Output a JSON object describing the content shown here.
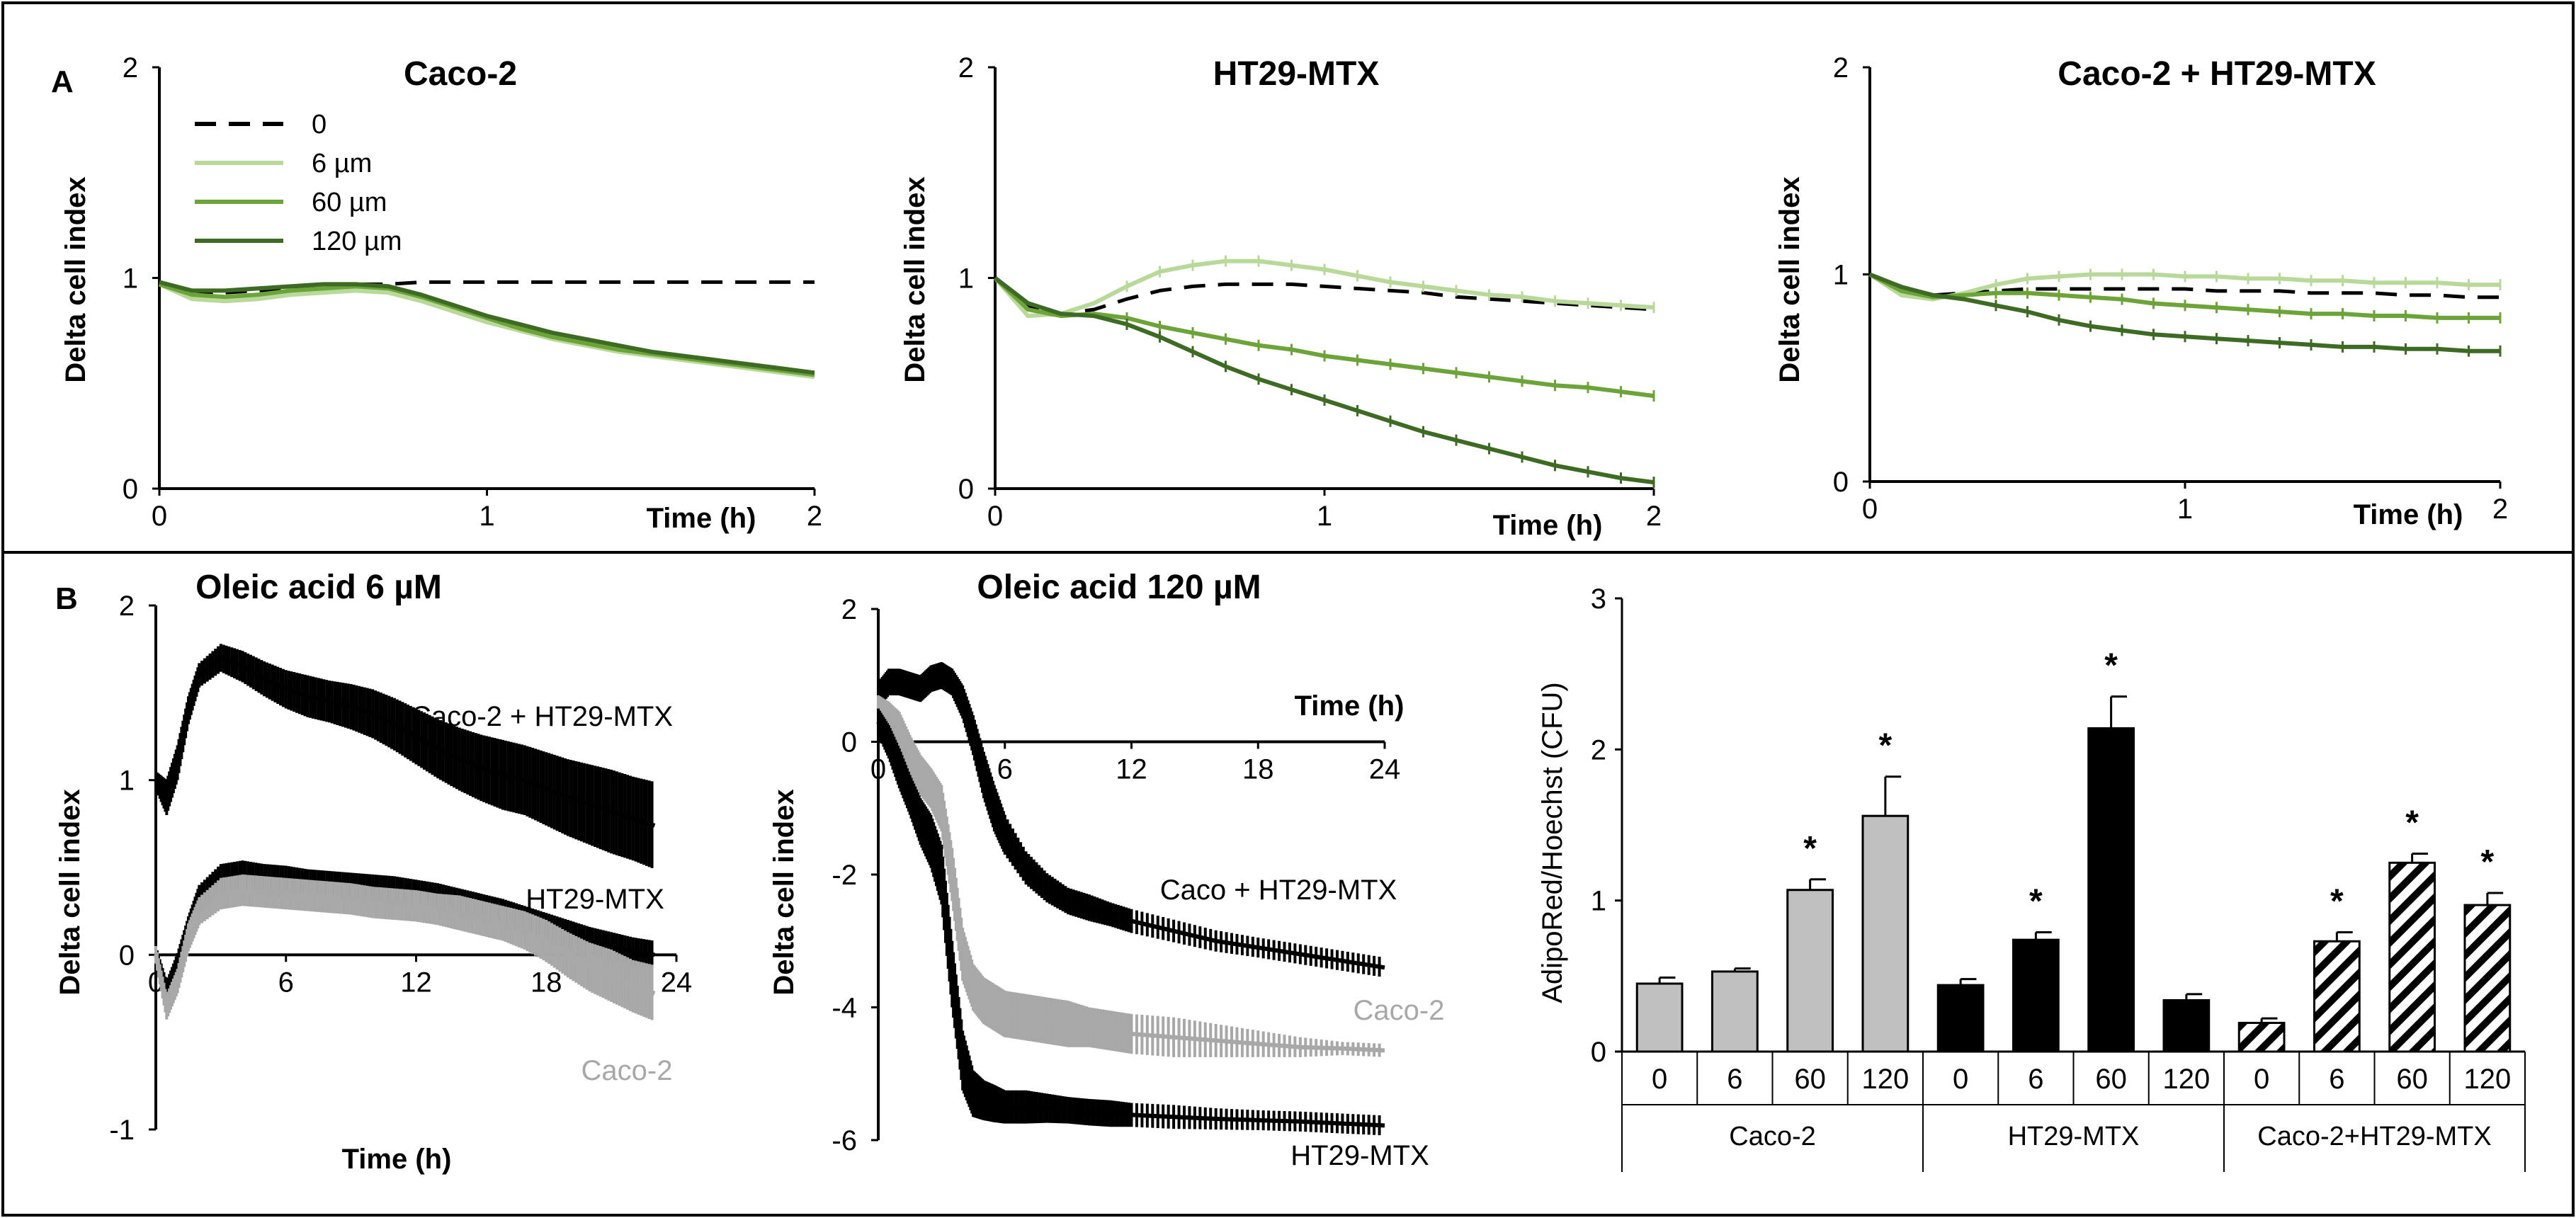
{
  "colors": {
    "zero": "#000000",
    "c6": "#b9d99a",
    "c60": "#6ca43a",
    "c120": "#3d6b24",
    "gray": "#a8a8a8",
    "black": "#000000"
  },
  "panels": {
    "a_label": "A",
    "b_label": "B"
  },
  "panelA": {
    "legend": {
      "items": [
        {
          "label": "0",
          "color": "#000000",
          "dashed": true
        },
        {
          "label": "6 µm",
          "color": "#b9d99a"
        },
        {
          "label": "60 µm",
          "color": "#6ca43a"
        },
        {
          "label": "120 µm",
          "color": "#3d6b24"
        }
      ]
    }
  },
  "chart_data": [
    {
      "type": "line",
      "id": "a1",
      "title": "Caco-2",
      "xlabel": "Time (h)",
      "ylabel": "Delta cell index",
      "xlim": [
        0,
        2
      ],
      "ylim": [
        0,
        2
      ],
      "xticks": [
        "0",
        "1",
        "2"
      ],
      "yticks": [
        "0",
        "1",
        "2"
      ],
      "x": [
        0,
        0.1,
        0.2,
        0.3,
        0.4,
        0.5,
        0.6,
        0.7,
        0.8,
        0.9,
        1.0,
        1.1,
        1.2,
        1.3,
        1.4,
        1.5,
        1.6,
        1.7,
        1.8,
        1.9,
        2.0
      ],
      "series": [
        {
          "name": "0",
          "color": "#000000",
          "dashed": true,
          "values": [
            0.97,
            0.92,
            0.93,
            0.94,
            0.95,
            0.96,
            0.97,
            0.97,
            0.98,
            0.98,
            0.98,
            0.98,
            0.98,
            0.98,
            0.98,
            0.98,
            0.98,
            0.98,
            0.98,
            0.98,
            0.98
          ]
        },
        {
          "name": "6 µm",
          "color": "#b9d99a",
          "values": [
            0.97,
            0.9,
            0.89,
            0.9,
            0.92,
            0.93,
            0.94,
            0.93,
            0.89,
            0.84,
            0.79,
            0.75,
            0.71,
            0.68,
            0.65,
            0.63,
            0.61,
            0.59,
            0.57,
            0.55,
            0.53
          ]
        },
        {
          "name": "60 µm",
          "color": "#6ca43a",
          "values": [
            0.97,
            0.92,
            0.91,
            0.92,
            0.94,
            0.95,
            0.96,
            0.95,
            0.91,
            0.86,
            0.81,
            0.76,
            0.72,
            0.69,
            0.66,
            0.64,
            0.62,
            0.6,
            0.58,
            0.56,
            0.54
          ]
        },
        {
          "name": "120 µm",
          "color": "#3d6b24",
          "values": [
            0.98,
            0.94,
            0.94,
            0.95,
            0.96,
            0.97,
            0.97,
            0.96,
            0.92,
            0.87,
            0.82,
            0.78,
            0.74,
            0.71,
            0.68,
            0.65,
            0.63,
            0.61,
            0.59,
            0.57,
            0.55
          ]
        }
      ]
    },
    {
      "type": "line",
      "id": "a2",
      "title": "HT29-MTX",
      "xlabel": "Time (h)",
      "ylabel": "Delta cell index",
      "xlim": [
        0,
        2
      ],
      "ylim": [
        0,
        2
      ],
      "xticks": [
        "0",
        "1",
        "2"
      ],
      "yticks": [
        "0",
        "1",
        "2"
      ],
      "x": [
        0,
        0.1,
        0.2,
        0.3,
        0.4,
        0.5,
        0.6,
        0.7,
        0.8,
        0.9,
        1.0,
        1.1,
        1.2,
        1.3,
        1.4,
        1.5,
        1.6,
        1.7,
        1.8,
        1.9,
        2.0
      ],
      "series": [
        {
          "name": "0",
          "color": "#000000",
          "dashed": true,
          "values": [
            1.0,
            0.86,
            0.83,
            0.85,
            0.9,
            0.94,
            0.96,
            0.97,
            0.97,
            0.97,
            0.96,
            0.95,
            0.94,
            0.93,
            0.91,
            0.9,
            0.89,
            0.88,
            0.87,
            0.86,
            0.85
          ]
        },
        {
          "name": "6 µm",
          "color": "#b9d99a",
          "values": [
            1.0,
            0.82,
            0.83,
            0.88,
            0.96,
            1.03,
            1.06,
            1.08,
            1.08,
            1.06,
            1.04,
            1.01,
            0.98,
            0.96,
            0.94,
            0.92,
            0.91,
            0.89,
            0.88,
            0.87,
            0.86
          ]
        },
        {
          "name": "60 µm",
          "color": "#6ca43a",
          "values": [
            1.0,
            0.85,
            0.82,
            0.83,
            0.81,
            0.77,
            0.74,
            0.71,
            0.68,
            0.66,
            0.63,
            0.61,
            0.59,
            0.57,
            0.55,
            0.53,
            0.51,
            0.49,
            0.48,
            0.46,
            0.44
          ]
        },
        {
          "name": "120 µm",
          "color": "#3d6b24",
          "values": [
            1.0,
            0.88,
            0.83,
            0.82,
            0.78,
            0.72,
            0.65,
            0.58,
            0.52,
            0.47,
            0.42,
            0.37,
            0.32,
            0.27,
            0.23,
            0.19,
            0.15,
            0.11,
            0.08,
            0.05,
            0.03
          ]
        }
      ]
    },
    {
      "type": "line",
      "id": "a3",
      "title": "Caco-2 + HT29-MTX",
      "xlabel": "Time (h)",
      "ylabel": "Delta cell index",
      "xlim": [
        0,
        2
      ],
      "ylim": [
        0,
        2
      ],
      "xticks": [
        "0",
        "1",
        "2"
      ],
      "yticks": [
        "0",
        "1",
        "2"
      ],
      "x": [
        0,
        0.1,
        0.2,
        0.3,
        0.4,
        0.5,
        0.6,
        0.7,
        0.8,
        0.9,
        1.0,
        1.1,
        1.2,
        1.3,
        1.4,
        1.5,
        1.6,
        1.7,
        1.8,
        1.9,
        2.0
      ],
      "series": [
        {
          "name": "0",
          "color": "#000000",
          "dashed": true,
          "values": [
            1.0,
            0.93,
            0.9,
            0.91,
            0.92,
            0.93,
            0.93,
            0.93,
            0.93,
            0.93,
            0.93,
            0.92,
            0.92,
            0.92,
            0.91,
            0.91,
            0.91,
            0.9,
            0.9,
            0.89,
            0.89
          ]
        },
        {
          "name": "6 µm",
          "color": "#b9d99a",
          "values": [
            1.0,
            0.9,
            0.88,
            0.91,
            0.95,
            0.98,
            0.99,
            1.0,
            1.0,
            1.0,
            0.99,
            0.99,
            0.98,
            0.98,
            0.97,
            0.97,
            0.96,
            0.96,
            0.96,
            0.95,
            0.95
          ]
        },
        {
          "name": "60 µm",
          "color": "#6ca43a",
          "values": [
            1.0,
            0.92,
            0.89,
            0.9,
            0.91,
            0.91,
            0.9,
            0.89,
            0.88,
            0.86,
            0.85,
            0.84,
            0.83,
            0.82,
            0.81,
            0.81,
            0.8,
            0.8,
            0.79,
            0.79,
            0.79
          ]
        },
        {
          "name": "120 µm",
          "color": "#3d6b24",
          "values": [
            1.0,
            0.94,
            0.9,
            0.88,
            0.85,
            0.82,
            0.78,
            0.75,
            0.73,
            0.71,
            0.7,
            0.69,
            0.68,
            0.67,
            0.66,
            0.65,
            0.65,
            0.64,
            0.64,
            0.63,
            0.63
          ]
        }
      ]
    },
    {
      "type": "line",
      "id": "b1",
      "title": "Oleic acid 6 µM",
      "xlabel": "Time (h)",
      "ylabel": "Delta cell index",
      "xlim": [
        0,
        24
      ],
      "ylim": [
        -1,
        2
      ],
      "xticks": [
        "0",
        "6",
        "12",
        "18",
        "24"
      ],
      "yticks": [
        "-1",
        "0",
        "1",
        "2"
      ],
      "x": [
        0,
        0.5,
        1,
        1.5,
        2,
        3,
        4,
        5,
        6,
        7,
        8,
        9,
        10,
        11,
        12,
        13,
        14,
        15,
        16,
        17,
        18,
        19,
        20,
        21,
        22,
        23
      ],
      "series": [
        {
          "name": "Caco-2 + HT29-MTX",
          "label": "Caco-2 + HT29-MTX",
          "color": "#000000",
          "values": [
            1.0,
            0.9,
            1.1,
            1.4,
            1.6,
            1.7,
            1.65,
            1.58,
            1.52,
            1.48,
            1.45,
            1.42,
            1.38,
            1.32,
            1.25,
            1.18,
            1.12,
            1.07,
            1.03,
            1.0,
            0.95,
            0.9,
            0.86,
            0.82,
            0.78,
            0.74
          ],
          "err": [
            0.05,
            0.1,
            0.1,
            0.08,
            0.07,
            0.08,
            0.09,
            0.1,
            0.11,
            0.12,
            0.12,
            0.13,
            0.14,
            0.15,
            0.16,
            0.17,
            0.18,
            0.19,
            0.2,
            0.2,
            0.21,
            0.22,
            0.23,
            0.24,
            0.24,
            0.25
          ]
        },
        {
          "name": "HT29-MTX",
          "label": "HT29-MTX",
          "color": "#000000",
          "values": [
            0.0,
            -0.2,
            -0.05,
            0.15,
            0.32,
            0.43,
            0.45,
            0.43,
            0.42,
            0.41,
            0.4,
            0.39,
            0.38,
            0.37,
            0.35,
            0.33,
            0.3,
            0.27,
            0.24,
            0.2,
            0.16,
            0.12,
            0.08,
            0.05,
            0.02,
            0.0
          ],
          "err": [
            0.05,
            0.05,
            0.06,
            0.07,
            0.08,
            0.09,
            0.09,
            0.09,
            0.09,
            0.08,
            0.08,
            0.08,
            0.08,
            0.08,
            0.08,
            0.08,
            0.08,
            0.08,
            0.08,
            0.08,
            0.08,
            0.08,
            0.08,
            0.08,
            0.08,
            0.08
          ]
        },
        {
          "name": "Caco-2",
          "label": "Caco-2",
          "color": "#a8a8a8",
          "values": [
            0.0,
            -0.3,
            -0.15,
            0.1,
            0.25,
            0.35,
            0.37,
            0.36,
            0.35,
            0.34,
            0.33,
            0.32,
            0.3,
            0.29,
            0.28,
            0.26,
            0.24,
            0.21,
            0.18,
            0.14,
            0.08,
            0.0,
            -0.07,
            -0.12,
            -0.18,
            -0.22
          ],
          "err": [
            0.05,
            0.07,
            0.07,
            0.08,
            0.08,
            0.09,
            0.09,
            0.09,
            0.09,
            0.09,
            0.09,
            0.09,
            0.09,
            0.09,
            0.09,
            0.09,
            0.1,
            0.1,
            0.1,
            0.11,
            0.12,
            0.13,
            0.14,
            0.15,
            0.15,
            0.16
          ]
        }
      ]
    },
    {
      "type": "line",
      "id": "b2",
      "title": "Oleic acid 120 µM",
      "xlabel": "Time (h)",
      "ylabel": "Delta cell index",
      "xlim": [
        0,
        24
      ],
      "ylim": [
        -6,
        2
      ],
      "xticks": [
        "0",
        "6",
        "12",
        "18",
        "24"
      ],
      "yticks": [
        "-6",
        "-4",
        "-2",
        "0",
        "2"
      ],
      "x": [
        0,
        0.5,
        1,
        1.5,
        2,
        2.5,
        3,
        3.5,
        4,
        4.5,
        5,
        5.5,
        6,
        7,
        8,
        9,
        10,
        11,
        12,
        14,
        16,
        18,
        20,
        22,
        24
      ],
      "series": [
        {
          "name": "Caco + HT29-MTX",
          "label": "Caco + HT29-MTX",
          "color": "#000000",
          "values": [
            0.7,
            0.9,
            0.9,
            0.85,
            0.8,
            0.95,
            1.0,
            0.9,
            0.6,
            0.1,
            -0.5,
            -1.0,
            -1.4,
            -1.9,
            -2.2,
            -2.4,
            -2.5,
            -2.6,
            -2.7,
            -2.85,
            -3.0,
            -3.1,
            -3.2,
            -3.3,
            -3.4
          ],
          "err": [
            0.2,
            0.2,
            0.2,
            0.2,
            0.2,
            0.2,
            0.2,
            0.2,
            0.25,
            0.3,
            0.35,
            0.35,
            0.3,
            0.25,
            0.22,
            0.2,
            0.2,
            0.18,
            0.18,
            0.17,
            0.16,
            0.15,
            0.15,
            0.15,
            0.15
          ]
        },
        {
          "name": "Caco-2",
          "label": "Caco-2",
          "color": "#a8a8a8",
          "values": [
            0.5,
            0.4,
            0.2,
            -0.2,
            -0.5,
            -0.7,
            -1.0,
            -2.0,
            -3.2,
            -3.7,
            -3.9,
            -4.0,
            -4.1,
            -4.15,
            -4.2,
            -4.25,
            -4.3,
            -4.35,
            -4.4,
            -4.45,
            -4.5,
            -4.55,
            -4.6,
            -4.62,
            -4.65
          ],
          "err": [
            0.2,
            0.2,
            0.25,
            0.3,
            0.3,
            0.3,
            0.35,
            0.4,
            0.4,
            0.35,
            0.35,
            0.35,
            0.35,
            0.35,
            0.35,
            0.35,
            0.3,
            0.3,
            0.3,
            0.3,
            0.25,
            0.2,
            0.15,
            0.1,
            0.1
          ]
        },
        {
          "name": "HT29-MTX",
          "label": "HT29-MTX",
          "color": "#000000",
          "values": [
            0.3,
            0.0,
            -0.4,
            -0.8,
            -1.2,
            -1.5,
            -2.0,
            -3.5,
            -4.8,
            -5.3,
            -5.4,
            -5.45,
            -5.5,
            -5.5,
            -5.52,
            -5.55,
            -5.58,
            -5.6,
            -5.62,
            -5.65,
            -5.68,
            -5.7,
            -5.72,
            -5.75,
            -5.78
          ],
          "err": [
            0.2,
            0.25,
            0.3,
            0.3,
            0.35,
            0.4,
            0.45,
            0.5,
            0.45,
            0.35,
            0.3,
            0.28,
            0.25,
            0.25,
            0.22,
            0.2,
            0.2,
            0.2,
            0.18,
            0.18,
            0.16,
            0.15,
            0.15,
            0.15,
            0.15
          ]
        }
      ]
    },
    {
      "type": "bar",
      "id": "b3",
      "ylabel": "AdipoRed/Hoechst (CFU)",
      "ylim": [
        0,
        3
      ],
      "yticks": [
        "0",
        "1",
        "2",
        "3"
      ],
      "groups": [
        {
          "name": "Caco-2",
          "color": "#c0c0c0",
          "pattern": "solid",
          "categories": [
            "0",
            "6",
            "60",
            "120"
          ],
          "values": [
            0.45,
            0.53,
            1.07,
            1.56
          ],
          "err": [
            0.04,
            0.02,
            0.07,
            0.26
          ],
          "sig": [
            false,
            false,
            true,
            true
          ]
        },
        {
          "name": "HT29-MTX",
          "color": "#000000",
          "pattern": "solid",
          "categories": [
            "0",
            "6",
            "60",
            "120"
          ],
          "values": [
            0.44,
            0.74,
            2.14,
            0.34
          ],
          "err": [
            0.04,
            0.05,
            0.21,
            0.04
          ],
          "sig": [
            false,
            true,
            true,
            false
          ]
        },
        {
          "name": "Caco-2+HT29-MTX",
          "color": "#000000",
          "pattern": "hatched",
          "categories": [
            "0",
            "6",
            "60",
            "120"
          ],
          "values": [
            0.19,
            0.73,
            1.25,
            0.97
          ],
          "err": [
            0.03,
            0.06,
            0.06,
            0.08
          ],
          "sig": [
            false,
            true,
            true,
            true
          ]
        }
      ],
      "sig_symbol": "*"
    }
  ]
}
